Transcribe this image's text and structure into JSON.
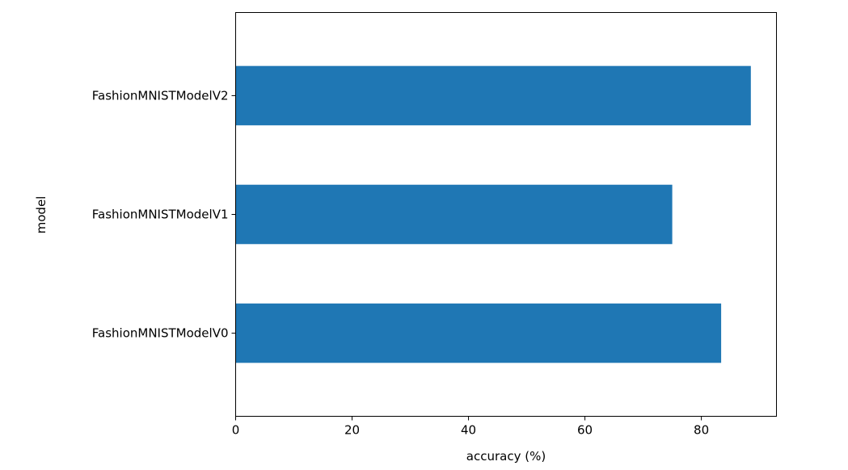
{
  "chart_data": {
    "type": "bar",
    "orientation": "horizontal",
    "categories": [
      "FashionMNISTModelV0",
      "FashionMNISTModelV1",
      "FashionMNISTModelV2"
    ],
    "values": [
      83.4,
      75.0,
      88.5
    ],
    "xlabel": "accuracy (%)",
    "ylabel": "model",
    "xlim": [
      0,
      92.9
    ],
    "xticks": [
      0,
      20,
      40,
      60,
      80
    ],
    "grid": false,
    "legend": "none",
    "bar_color": "#1f77b4"
  }
}
